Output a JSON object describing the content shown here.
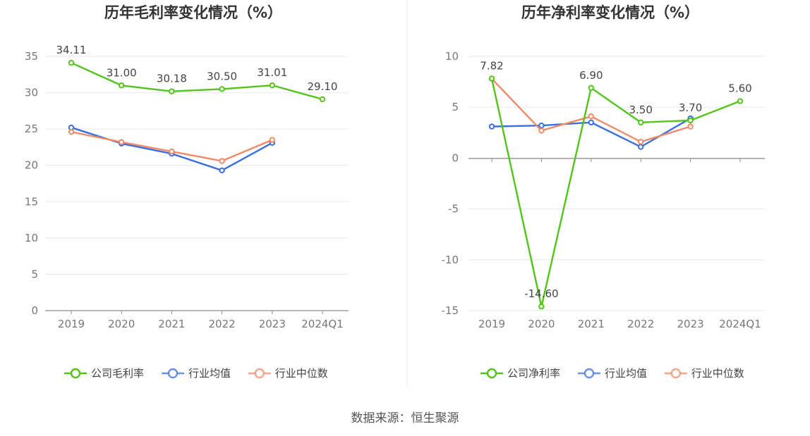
{
  "source": "数据来源：恒生聚源",
  "chart_data": [
    {
      "type": "line",
      "title": "历年毛利率变化情况（%）",
      "categories": [
        "2019",
        "2020",
        "2021",
        "2022",
        "2023",
        "2024Q1"
      ],
      "ylim": [
        0,
        35
      ],
      "yticks": [
        "0",
        "5",
        "10",
        "15",
        "20",
        "25",
        "30",
        "35"
      ],
      "grid": true,
      "legend_position": "bottom",
      "series": [
        {
          "name": "公司毛利率",
          "color": "#52c41a",
          "values": [
            34.11,
            31.0,
            30.18,
            30.5,
            31.01,
            29.1
          ],
          "labels": [
            "34.11",
            "31.00",
            "30.18",
            "30.50",
            "31.01",
            "29.10"
          ]
        },
        {
          "name": "行业均值",
          "color": "#3b6fdf",
          "values": [
            25.2,
            23.0,
            21.6,
            19.3,
            23.1,
            null
          ]
        },
        {
          "name": "行业中位数",
          "color": "#f08a68",
          "values": [
            24.6,
            23.2,
            21.9,
            20.6,
            23.5,
            null
          ]
        }
      ]
    },
    {
      "type": "line",
      "title": "历年净利率变化情况（%）",
      "categories": [
        "2019",
        "2020",
        "2021",
        "2022",
        "2023",
        "2024Q1"
      ],
      "ylim": [
        -15,
        10
      ],
      "yticks": [
        "-15",
        "-10",
        "-5",
        "0",
        "5",
        "10"
      ],
      "grid": true,
      "legend_position": "bottom",
      "series": [
        {
          "name": "公司净利率",
          "color": "#52c41a",
          "values": [
            7.82,
            -14.6,
            6.9,
            3.5,
            3.7,
            5.6
          ],
          "labels": [
            "7.82",
            "-14.60",
            "6.90",
            "3.50",
            "3.70",
            "5.60"
          ]
        },
        {
          "name": "行业均值",
          "color": "#3b6fdf",
          "values": [
            3.1,
            3.2,
            3.5,
            1.1,
            3.9,
            null
          ]
        },
        {
          "name": "行业中位数",
          "color": "#f08a68",
          "values": [
            7.8,
            2.7,
            4.1,
            1.6,
            3.1,
            null
          ]
        }
      ]
    }
  ]
}
